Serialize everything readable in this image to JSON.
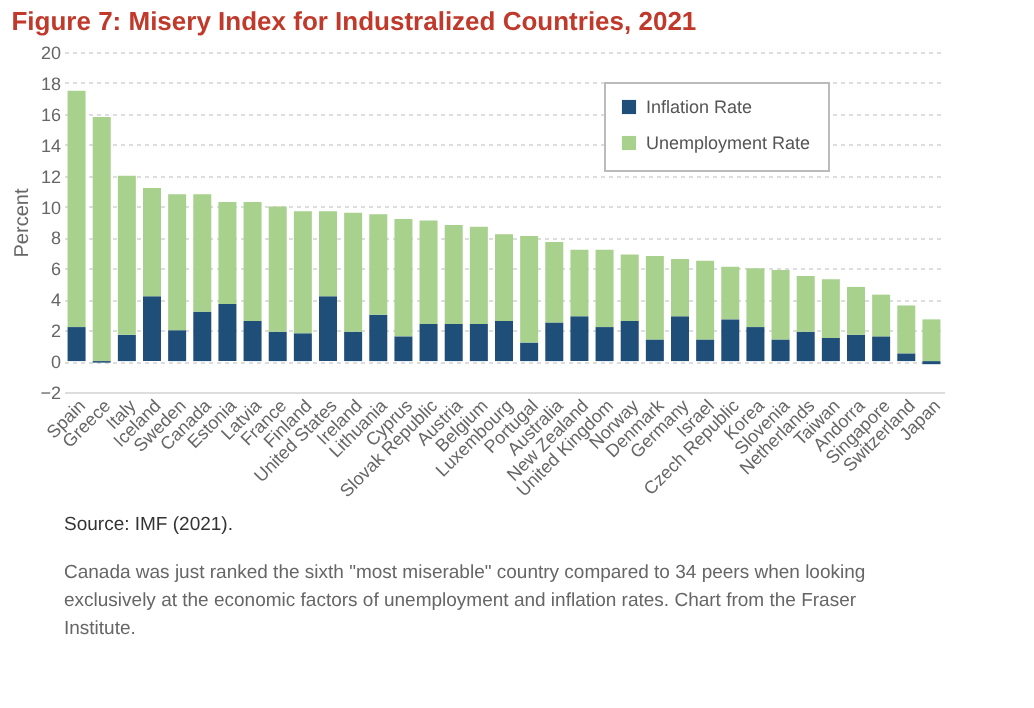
{
  "chart_data": {
    "type": "bar",
    "stacked": true,
    "title": "Figure 7: Misery Index for Industralized Countries, 2021",
    "ylabel": "Percent",
    "categories": [
      "Spain",
      "Greece",
      "Italy",
      "Iceland",
      "Sweden",
      "Canada",
      "Estonia",
      "Latvia",
      "France",
      "Finland",
      "United States",
      "Ireland",
      "Lithuania",
      "Cyprus",
      "Slovak Republic",
      "Austria",
      "Belgium",
      "Luxembourg",
      "Portugal",
      "Australia",
      "New Zealand",
      "United Kingdom",
      "Norway",
      "Denmark",
      "Germany",
      "Israel",
      "Czech Republic",
      "Korea",
      "Slovenia",
      "Netherlands",
      "Taiwan",
      "Andorra",
      "Singapore",
      "Switzerland",
      "Japan"
    ],
    "series": [
      {
        "name": "Inflation Rate",
        "color": "#1f4e79",
        "values": [
          2.2,
          -0.1,
          1.7,
          4.2,
          2.0,
          3.2,
          3.7,
          2.6,
          1.9,
          1.8,
          4.2,
          1.9,
          3.0,
          1.6,
          2.4,
          2.4,
          2.4,
          2.6,
          1.2,
          2.5,
          2.9,
          2.2,
          2.6,
          1.4,
          2.9,
          1.4,
          2.7,
          2.2,
          1.4,
          1.9,
          1.5,
          1.7,
          1.6,
          0.5,
          -0.2
        ]
      },
      {
        "name": "Unemployment Rate",
        "color": "#a9d18e",
        "values": [
          15.3,
          15.8,
          10.3,
          7.0,
          8.8,
          7.6,
          6.6,
          7.7,
          8.1,
          7.9,
          5.5,
          7.7,
          6.5,
          7.6,
          6.7,
          6.4,
          6.3,
          5.6,
          6.9,
          5.2,
          4.3,
          5.0,
          4.3,
          5.4,
          3.7,
          5.1,
          3.4,
          3.8,
          4.5,
          3.6,
          3.8,
          3.1,
          2.7,
          3.1,
          2.7
        ]
      }
    ],
    "ylim": [
      -2,
      20
    ],
    "yticks": [
      -2,
      0,
      2,
      4,
      6,
      8,
      10,
      12,
      14,
      16,
      18,
      20
    ],
    "grid": "y",
    "legend": "top right",
    "annotations": [
      "Source: IMF (2021).",
      "Canada was just ranked the sixth \"most miserable\" country compared to 34 peers when looking exclusively at the economic factors of unemployment and inflation rates. Chart from the Fraser Institute."
    ]
  }
}
